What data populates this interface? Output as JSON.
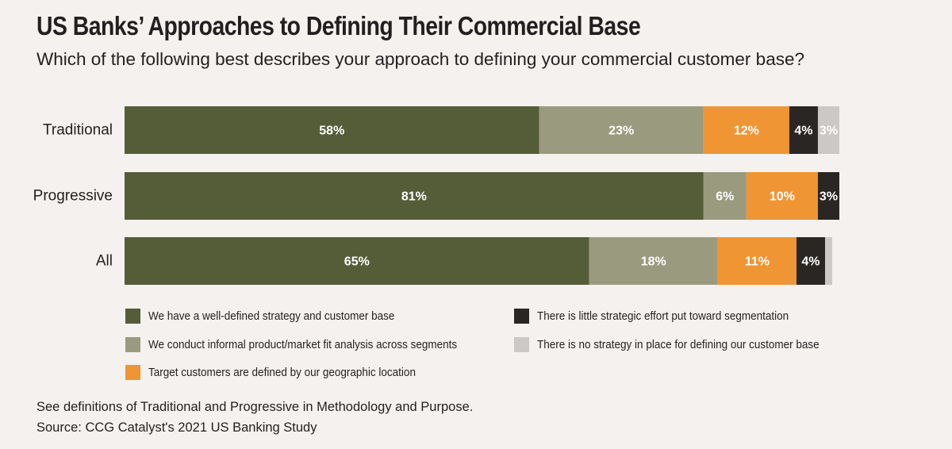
{
  "header": {
    "title": "US Banks’ Approaches to Defining Their Commercial Base",
    "subtitle": "Which of the following best describes your approach to defining your commercial customer base?"
  },
  "chart_data": {
    "type": "bar",
    "orientation": "horizontal",
    "stacked": true,
    "title": "US Banks’ Approaches to Defining Their Commercial Base",
    "categories": [
      "Traditional",
      "Progressive",
      "All"
    ],
    "series": [
      {
        "name": "We have a well-defined strategy and customer base",
        "color": "#545d38",
        "values": [
          58,
          81,
          65
        ],
        "labels": [
          "58%",
          "81%",
          "65%"
        ]
      },
      {
        "name": "We conduct informal product/market fit analysis across segments",
        "color": "#9a9a7f",
        "values": [
          23,
          6,
          18
        ],
        "labels": [
          "23%",
          "6%",
          "18%"
        ]
      },
      {
        "name": "Target customers are defined by our geographic location",
        "color": "#ef9533",
        "values": [
          12,
          10,
          11
        ],
        "labels": [
          "12%",
          "10%",
          "11%"
        ]
      },
      {
        "name": "There is little strategic effort put toward segmentation",
        "color": "#2a2624",
        "values": [
          4,
          3,
          4
        ],
        "labels": [
          "4%",
          "3%",
          "4%"
        ]
      },
      {
        "name": "There is no strategy in place for defining our customer base",
        "color": "#cbc8c5",
        "values": [
          3,
          0,
          1
        ],
        "labels": [
          "3%",
          "",
          ""
        ]
      }
    ],
    "xlim": [
      0,
      100
    ],
    "legend_position": "bottom"
  },
  "legend": {
    "items": [
      {
        "label": "We have a well-defined strategy and customer base",
        "color": "#545d38"
      },
      {
        "label": "There is little strategic effort put toward segmentation",
        "color": "#2a2624"
      },
      {
        "label": "We conduct informal product/market fit analysis across segments",
        "color": "#9a9a7f"
      },
      {
        "label": "There is no strategy in place for defining our customer base",
        "color": "#cbc8c5"
      },
      {
        "label": "Target customers are defined by our geographic location",
        "color": "#ef9533"
      }
    ]
  },
  "footnote": {
    "definitions": "See definitions of Traditional and Progressive in Methodology and Purpose.",
    "source": "Source: CCG Catalyst's 2021 US Banking Study"
  }
}
